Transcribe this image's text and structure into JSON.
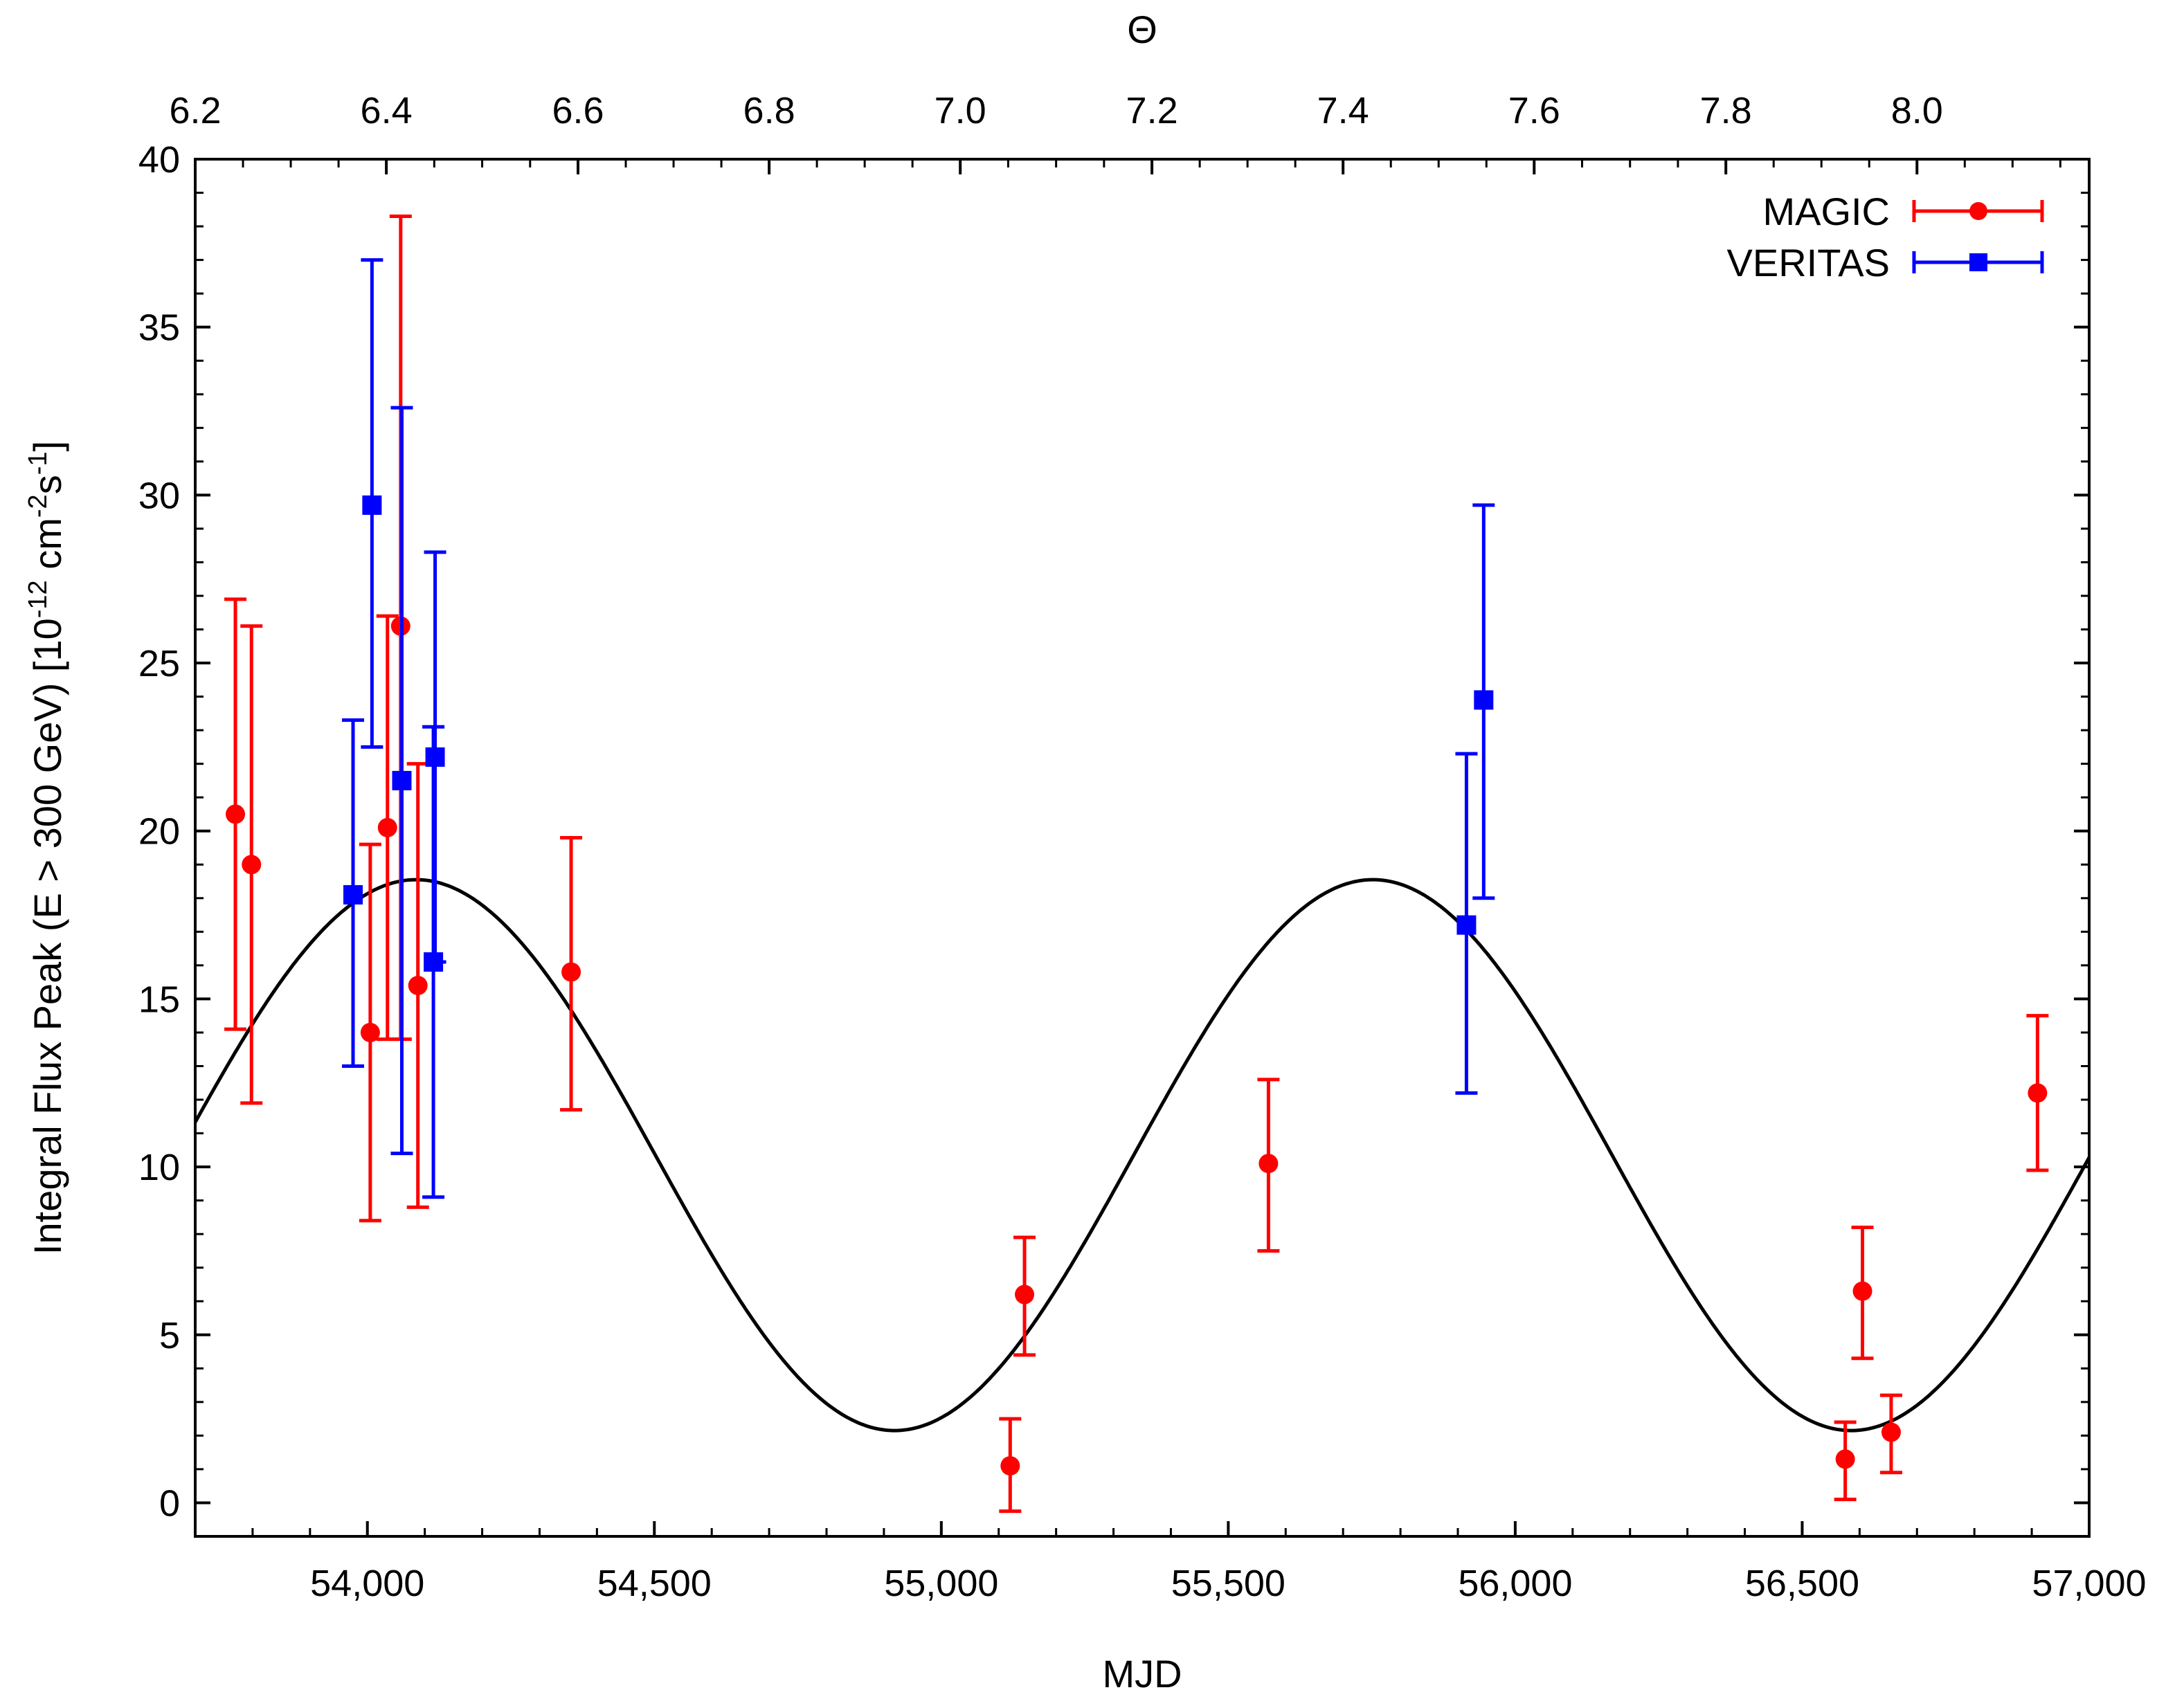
{
  "chart_data": {
    "type": "scatter",
    "x_axis": {
      "label": "MJD",
      "range": [
        53700,
        57000
      ],
      "ticks": [
        54000,
        54500,
        55000,
        55500,
        56000,
        56500,
        57000
      ],
      "tick_labels": [
        "54,000",
        "54,500",
        "55,000",
        "55,500",
        "56,000",
        "56,500",
        "57,000"
      ]
    },
    "top_axis": {
      "label": "Θ",
      "ticks": [
        6.2,
        6.4,
        6.6,
        6.8,
        7.0,
        7.2,
        7.4,
        7.6,
        7.8,
        8.0
      ],
      "tick_labels": [
        "6.2",
        "6.4",
        "6.6",
        "6.8",
        "7.0",
        "7.2",
        "7.4",
        "7.6",
        "7.8",
        "8.0"
      ],
      "mjd_at_ticks": [
        53700,
        54033,
        54367,
        54700,
        55033,
        55367,
        55700,
        56033,
        56367,
        56700
      ]
    },
    "y_axis": {
      "label": "Integral Flux Peak (E > 300 GeV) [10",
      "label_exp1": "-12",
      "label_mid": " cm",
      "label_exp2": "-2",
      "label_s": "s",
      "label_exp3": "-1",
      "label_end": "]",
      "range": [
        -1,
        40
      ],
      "ticks": [
        0,
        5,
        10,
        15,
        20,
        25,
        30,
        35,
        40
      ],
      "tick_labels": [
        "0",
        "5",
        "10",
        "15",
        "20",
        "25",
        "30",
        "35",
        "40"
      ]
    },
    "legend_position": "top-right",
    "series": [
      {
        "name": "MAGIC",
        "color": "#ff0000",
        "marker": "circle",
        "points": [
          {
            "x": 53770,
            "y": 20.5,
            "ylo": 14.1,
            "yhi": 26.9
          },
          {
            "x": 53798,
            "y": 19.0,
            "ylo": 11.9,
            "yhi": 26.1
          },
          {
            "x": 54005,
            "y": 14.0,
            "ylo": 8.4,
            "yhi": 19.6
          },
          {
            "x": 54035,
            "y": 20.1,
            "ylo": 13.8,
            "yhi": 26.4
          },
          {
            "x": 54058,
            "y": 26.1,
            "ylo": 13.8,
            "yhi": 38.3
          },
          {
            "x": 54088,
            "y": 15.4,
            "ylo": 8.8,
            "yhi": 22.0
          },
          {
            "x": 54355,
            "y": 15.8,
            "ylo": 11.7,
            "yhi": 19.8
          },
          {
            "x": 55120,
            "y": 1.1,
            "ylo": -0.25,
            "yhi": 2.5
          },
          {
            "x": 55145,
            "y": 6.2,
            "ylo": 4.4,
            "yhi": 7.9
          },
          {
            "x": 55570,
            "y": 10.1,
            "ylo": 7.5,
            "yhi": 12.6
          },
          {
            "x": 56575,
            "y": 1.3,
            "ylo": 0.1,
            "yhi": 2.4
          },
          {
            "x": 56605,
            "y": 6.3,
            "ylo": 4.3,
            "yhi": 8.2
          },
          {
            "x": 56655,
            "y": 2.1,
            "ylo": 0.9,
            "yhi": 3.2
          },
          {
            "x": 56910,
            "y": 12.2,
            "ylo": 9.9,
            "yhi": 14.5
          }
        ]
      },
      {
        "name": "VERITAS",
        "color": "#0000ff",
        "marker": "square",
        "points": [
          {
            "x": 53975,
            "y": 18.1,
            "ylo": 13.0,
            "yhi": 23.3
          },
          {
            "x": 54008,
            "y": 29.7,
            "ylo": 22.5,
            "yhi": 37.0
          },
          {
            "x": 54060,
            "y": 21.5,
            "ylo": 10.4,
            "yhi": 32.6
          },
          {
            "x": 54115,
            "y": 16.1,
            "ylo": 9.1,
            "yhi": 23.1
          },
          {
            "x": 54118,
            "y": 22.2,
            "ylo": 16.1,
            "yhi": 28.3
          },
          {
            "x": 55915,
            "y": 17.2,
            "ylo": 12.2,
            "yhi": 22.3
          },
          {
            "x": 55945,
            "y": 23.9,
            "ylo": 18.0,
            "yhi": 29.7
          }
        ]
      }
    ],
    "model_curve": {
      "name": "sinusoidal fit",
      "color": "#000000",
      "mean": 10.35,
      "amplitude": 8.2,
      "period_mjd": 1667,
      "peak_mjd": 54085
    }
  }
}
